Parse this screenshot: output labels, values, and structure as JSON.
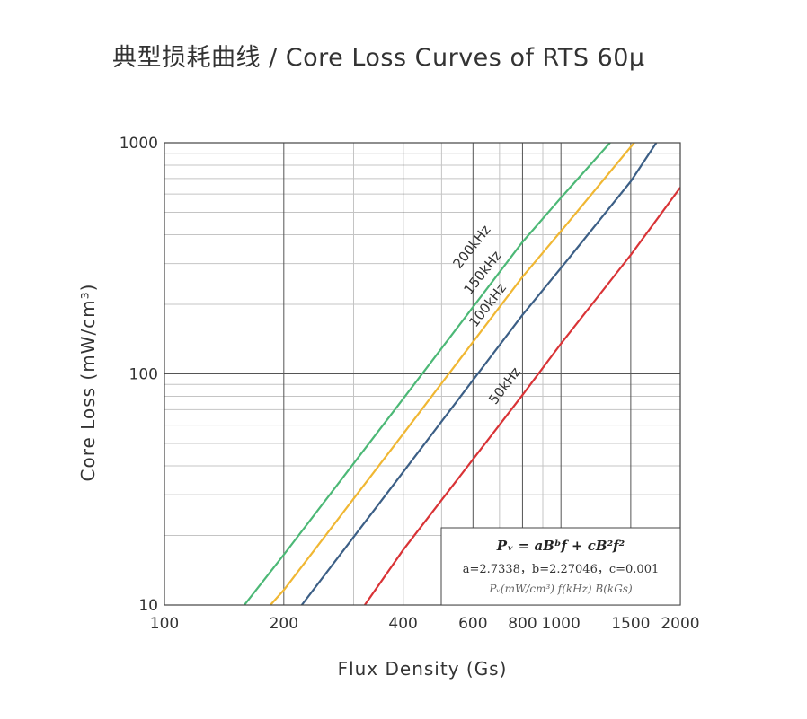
{
  "chart_data": {
    "type": "line",
    "title": "典型损耗曲线 / Core Loss Curves of RTS 60μ",
    "xlabel": "Flux Density (Gs)",
    "ylabel": "Core Loss (mW/cm³)",
    "xscale": "log",
    "yscale": "log",
    "xlim": [
      100,
      2000
    ],
    "ylim": [
      10,
      1000
    ],
    "x_ticks": [
      100,
      200,
      400,
      600,
      800,
      1000,
      1500,
      2000
    ],
    "x_tick_labels": [
      "100",
      "200",
      "400",
      "600",
      "800",
      "1000",
      "1500",
      "2000"
    ],
    "y_ticks": [
      10,
      100,
      1000
    ],
    "y_tick_labels": [
      "10",
      "100",
      "1000"
    ],
    "grid": true,
    "series": [
      {
        "name": "200kHz",
        "color": "#4cb876",
        "x": [
          159,
          200,
          400,
          800,
          1000,
          1330
        ],
        "y": [
          10,
          16.5,
          78,
          372,
          578,
          1000
        ]
      },
      {
        "name": "150kHz",
        "color": "#f0b733",
        "x": [
          185,
          200,
          400,
          800,
          1000,
          1530
        ],
        "y": [
          10,
          11.6,
          55,
          263,
          414,
          1000
        ]
      },
      {
        "name": "100kHz",
        "color": "#3c5f86",
        "x": [
          222,
          400,
          800,
          1000,
          1500,
          1740
        ],
        "y": [
          10,
          37.6,
          180,
          287,
          680,
          1000
        ]
      },
      {
        "name": "50kHz",
        "color": "#d93336",
        "x": [
          320,
          400,
          800,
          1000,
          1500,
          2000
        ],
        "y": [
          10,
          17.3,
          81,
          135,
          327,
          640
        ]
      }
    ]
  },
  "formula": {
    "main": "Pᵥ = aBᵇf + cB²f²",
    "params": "a=2.7338，b=2.27046，c=0.001",
    "units": "Pᵥ(mW/cm³) f(kHz) B(kGs)"
  }
}
